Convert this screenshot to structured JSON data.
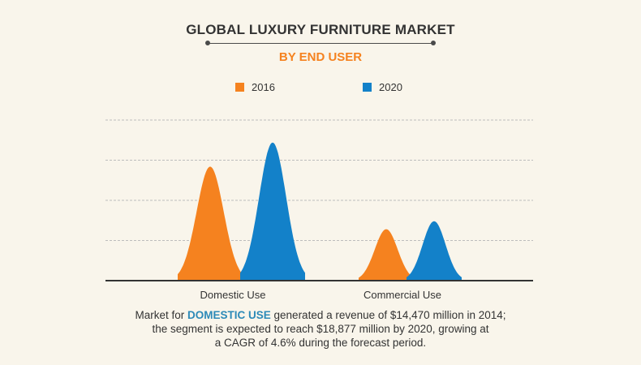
{
  "header": {
    "title": "GLOBAL LUXURY FURNITURE MARKET",
    "subtitle": "BY END USER"
  },
  "colors": {
    "series_2016": "#f5821f",
    "series_2020": "#1381c9",
    "grid": "#bdbdbd",
    "axis": "#333333",
    "highlight": "#2c8ab8"
  },
  "legend": [
    {
      "label": "2016",
      "color": "#f5821f"
    },
    {
      "label": "2020",
      "color": "#1381c9"
    }
  ],
  "chart_data": {
    "type": "area",
    "categories": [
      "Domestic Use",
      "Commercial Use"
    ],
    "series": [
      {
        "name": "2016",
        "values": [
          0.71,
          0.32
        ]
      },
      {
        "name": "2020",
        "values": [
          0.86,
          0.37
        ]
      }
    ],
    "ylim": [
      0,
      1
    ],
    "grid": true,
    "legend_position": "top"
  },
  "footnote": {
    "line1_prefix": "Market for ",
    "line1_highlight": "DOMESTIC USE",
    "line1_suffix": " generated a revenue of $14,470 million in 2014;",
    "line2": "the segment is expected to reach $18,877 million by 2020, growing at",
    "line3": "a CAGR of 4.6% during the forecast period."
  }
}
